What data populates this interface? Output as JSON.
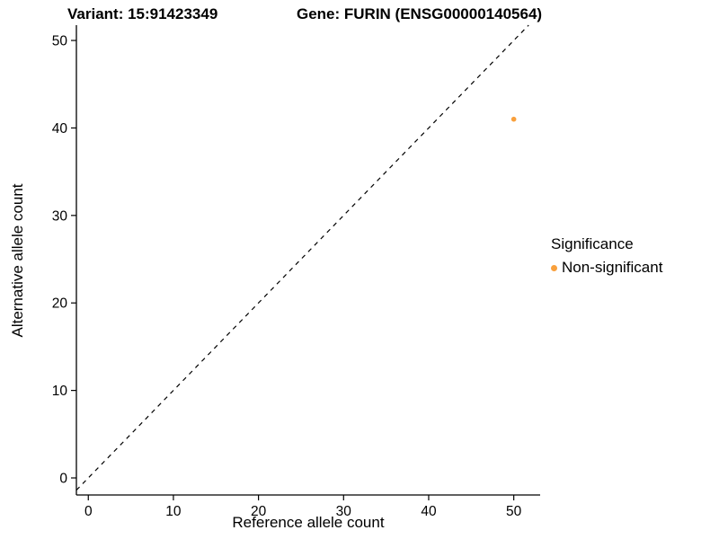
{
  "chart_data": {
    "type": "scatter",
    "title_left": "Variant: 15:91423349",
    "title_right": "Gene: FURIN (ENSG00000140564)",
    "xlabel": "Reference allele count",
    "ylabel": "Alternative allele count",
    "xlim": [
      -1.4,
      53.1
    ],
    "ylim": [
      -1.95,
      51.75
    ],
    "xticks": [
      0,
      10,
      20,
      30,
      40,
      50
    ],
    "yticks": [
      0,
      10,
      20,
      30,
      40,
      50
    ],
    "grid": false,
    "identity_line": {
      "style": "dashed",
      "slope": 1,
      "intercept": 0,
      "color": "#000000"
    },
    "series": [
      {
        "name": "Non-significant",
        "color": "#F9A03C",
        "points": [
          {
            "x": 50,
            "y": 41
          }
        ]
      }
    ],
    "legend": {
      "title": "Significance",
      "position": "right",
      "items": [
        {
          "label": "Non-significant",
          "color": "#F9A03C"
        }
      ]
    },
    "colors": {
      "point": "#F9A03C",
      "axis": "#000000",
      "text": "#000000",
      "background": "#ffffff"
    }
  }
}
